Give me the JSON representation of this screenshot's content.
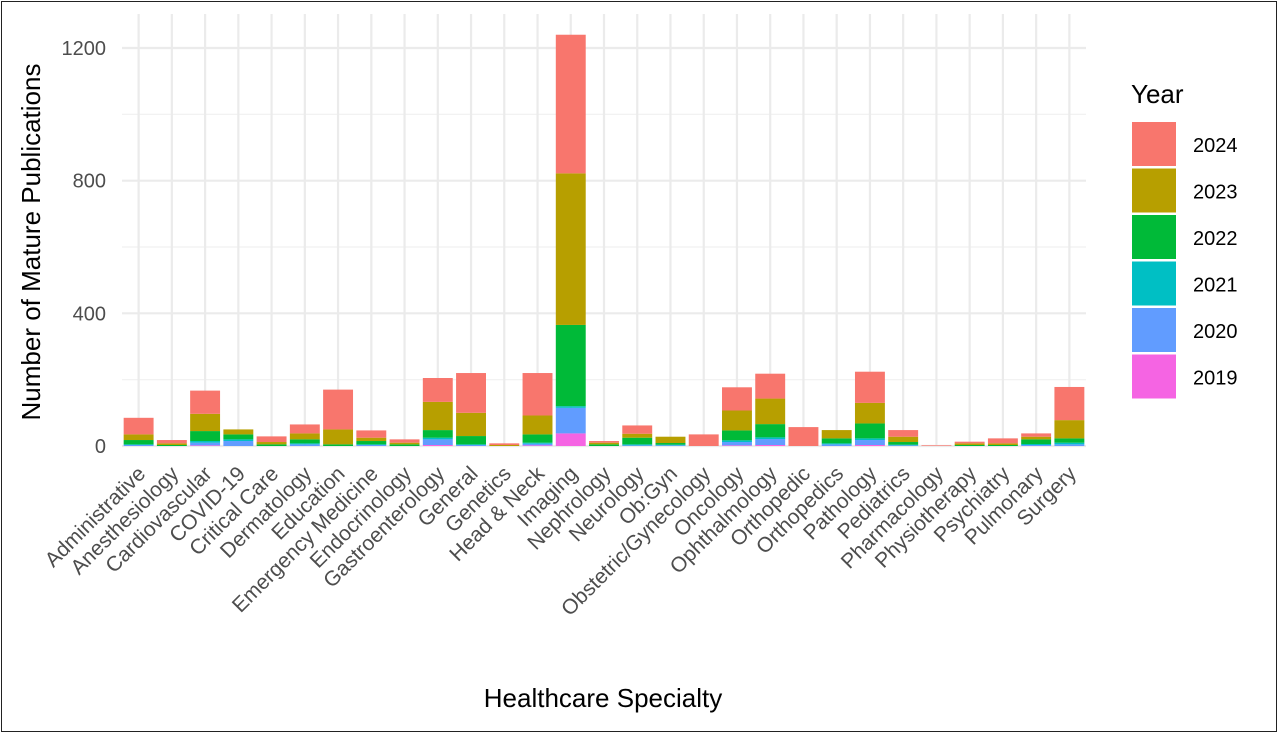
{
  "chart_data": {
    "type": "bar",
    "stacked": true,
    "xlabel": "Healthcare Specialty",
    "ylabel": "Number of Mature Publications",
    "ylim": [
      0,
      1240
    ],
    "yticks": [
      0,
      400,
      800,
      1200
    ],
    "grid": true,
    "legend": {
      "title": "Year",
      "position": "right"
    },
    "categories": [
      "Administrative",
      "Anesthesiology",
      "Cardiovascular",
      "COVID-19",
      "Critical Care",
      "Dermatology",
      "Education",
      "Emergency Medicine",
      "Endocrinology",
      "Gastroenterology",
      "General",
      "Genetics",
      "Head & Neck",
      "Imaging",
      "Nephrology",
      "Neurology",
      "Ob:Gyn",
      "Obstetric/Gynecology",
      "Oncology",
      "Ophthalmology",
      "Orthopedic",
      "Orthopedics",
      "Pathology",
      "Pediatrics",
      "Pharmacology",
      "Physiotherapy",
      "Psychiatry",
      "Pulmonary",
      "Surgery"
    ],
    "series": [
      {
        "name": "2019",
        "color": "#F564E3",
        "values": [
          0,
          0,
          2,
          0,
          0,
          0,
          0,
          0,
          0,
          3,
          0,
          0,
          2,
          38,
          0,
          0,
          0,
          0,
          2,
          3,
          0,
          0,
          3,
          0,
          0,
          0,
          0,
          0,
          0
        ]
      },
      {
        "name": "2020",
        "color": "#619CFF",
        "values": [
          3,
          0,
          8,
          15,
          0,
          5,
          0,
          3,
          0,
          17,
          3,
          0,
          5,
          77,
          0,
          2,
          2,
          0,
          10,
          18,
          0,
          5,
          15,
          2,
          0,
          0,
          0,
          3,
          5
        ]
      },
      {
        "name": "2021",
        "color": "#00BFC4",
        "values": [
          2,
          0,
          5,
          5,
          0,
          3,
          0,
          2,
          0,
          5,
          2,
          0,
          3,
          5,
          0,
          3,
          2,
          0,
          5,
          5,
          0,
          3,
          5,
          2,
          0,
          0,
          0,
          3,
          5
        ]
      },
      {
        "name": "2022",
        "color": "#00BA38",
        "values": [
          13,
          3,
          30,
          15,
          5,
          12,
          5,
          10,
          5,
          23,
          25,
          0,
          25,
          245,
          5,
          20,
          5,
          0,
          30,
          40,
          0,
          15,
          45,
          8,
          0,
          3,
          3,
          14,
          13
        ]
      },
      {
        "name": "2023",
        "color": "#B79F00",
        "values": [
          17,
          5,
          52,
          15,
          7,
          18,
          45,
          10,
          5,
          85,
          70,
          3,
          57,
          457,
          5,
          12,
          19,
          0,
          60,
          77,
          0,
          25,
          62,
          16,
          0,
          5,
          5,
          8,
          55
        ]
      },
      {
        "name": "2024",
        "color": "#F8766D",
        "values": [
          50,
          10,
          70,
          0,
          17,
          27,
          120,
          22,
          10,
          72,
          120,
          5,
          128,
          418,
          5,
          25,
          0,
          35,
          70,
          75,
          57,
          0,
          94,
          20,
          2,
          5,
          15,
          10,
          100
        ]
      }
    ],
    "legend_order": [
      "2024",
      "2023",
      "2022",
      "2021",
      "2020",
      "2019"
    ]
  }
}
